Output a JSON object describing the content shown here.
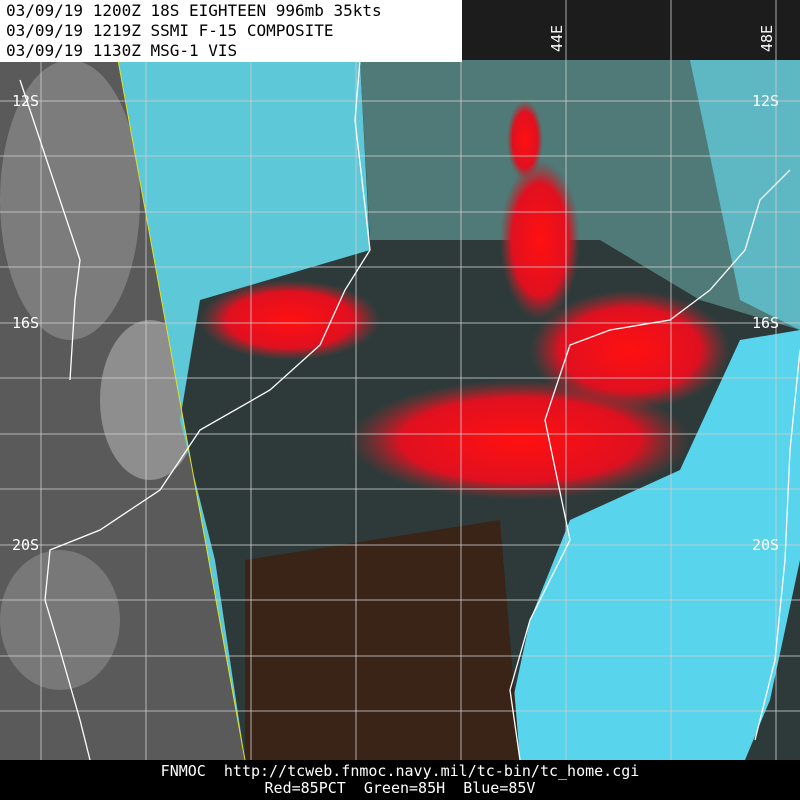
{
  "header": {
    "lines": [
      "03/09/19 1200Z  18S EIGHTEEN 996mb 35kts",
      "03/09/19 1219Z  SSMI F-15 COMPOSITE",
      "03/09/19 1130Z  MSG-1 VIS"
    ]
  },
  "grid_labels": {
    "longitude": [
      "44E",
      "48E"
    ],
    "latitude": [
      "12S",
      "16S",
      "20S"
    ]
  },
  "footer": {
    "lines": [
      "FNMOC  http://tcweb.fnmoc.navy.mil/tc-bin/tc_home.cgi",
      "Red=85PCT  Green=85H  Blue=85V"
    ]
  }
}
